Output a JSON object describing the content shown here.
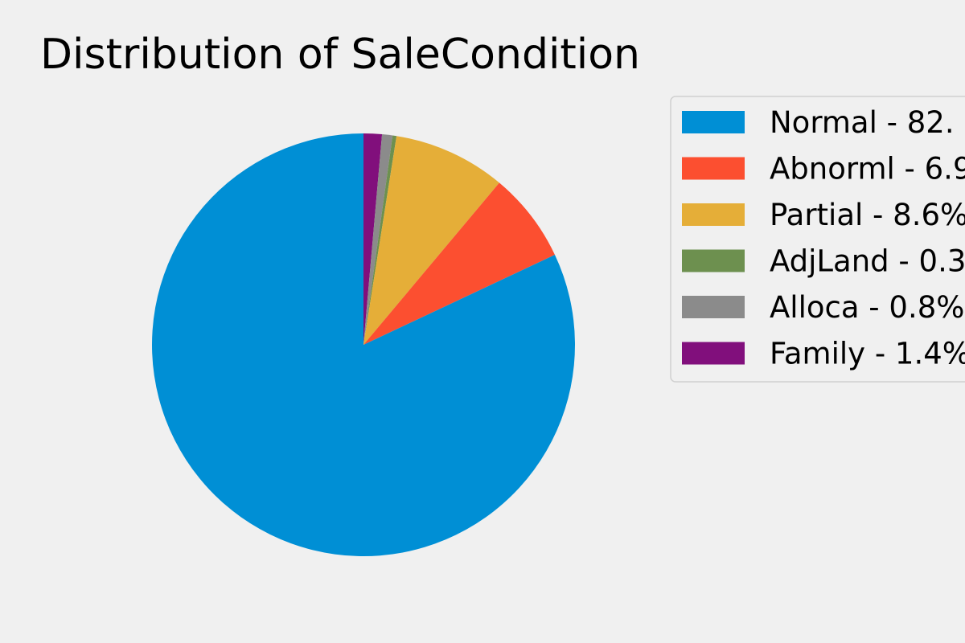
{
  "chart_data": {
    "type": "pie",
    "title": "Distribution of SaleCondition",
    "start_angle_deg": 90,
    "direction": "clockwise",
    "legend_position": "top-right",
    "slices": [
      {
        "label": "Normal",
        "legend_label": "Normal - 82.",
        "value": 82.0,
        "color": "#008fd5"
      },
      {
        "label": "Abnorml",
        "legend_label": "Abnorml - 6.9",
        "value": 6.9,
        "color": "#fc4f30"
      },
      {
        "label": "Partial",
        "legend_label": "Partial - 8.6%",
        "value": 8.6,
        "color": "#e5ae38"
      },
      {
        "label": "AdjLand",
        "legend_label": "AdjLand - 0.3",
        "value": 0.3,
        "color": "#6d904f"
      },
      {
        "label": "Alloca",
        "legend_label": "Alloca - 0.8%",
        "value": 0.8,
        "color": "#8b8b8b"
      },
      {
        "label": "Family",
        "legend_label": "Family - 1.4%",
        "value": 1.4,
        "color": "#810f7c"
      }
    ]
  }
}
